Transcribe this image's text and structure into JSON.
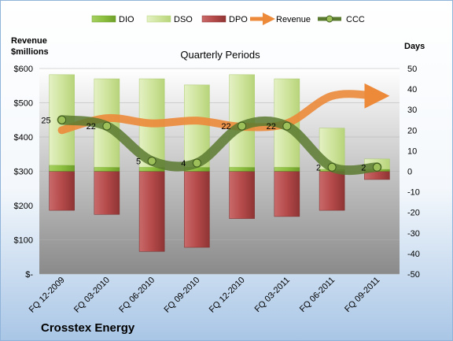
{
  "chart_data": {
    "type": "bar",
    "title": "Quarterly Periods",
    "company": "Crosstex Energy",
    "left_axis": {
      "label_line1": "Revenue",
      "label_line2": "$millions",
      "range": [
        0,
        600
      ],
      "ticks": [
        "$-",
        "$100",
        "$200",
        "$300",
        "$400",
        "$500",
        "$600"
      ]
    },
    "right_axis": {
      "label": "Days",
      "range": [
        -50,
        50
      ],
      "ticks": [
        -50,
        -40,
        -30,
        -20,
        -10,
        0,
        10,
        20,
        30,
        40,
        50
      ]
    },
    "categories": [
      "FQ 12-2009",
      "FQ 03-2010",
      "FQ 06-2010",
      "FQ 09-2010",
      "FQ 12-2010",
      "FQ 03-2011",
      "FQ 06-2011",
      "FQ 09-2011"
    ],
    "legend": [
      "DIO",
      "DSO",
      "DPO",
      "Revenue",
      "CCC"
    ],
    "series": [
      {
        "name": "DIO",
        "axis": "right",
        "stack": "positive",
        "values": [
          3,
          2,
          2,
          2,
          2,
          2,
          1,
          1
        ]
      },
      {
        "name": "DSO",
        "axis": "right",
        "stack": "positive",
        "values": [
          44,
          43,
          43,
          40,
          45,
          43,
          20,
          5
        ]
      },
      {
        "name": "DPO",
        "axis": "right",
        "stack": "negative",
        "values": [
          -19,
          -21,
          -39,
          -37,
          -23,
          -22,
          -19,
          -4
        ]
      },
      {
        "name": "Revenue",
        "axis": "left",
        "type": "line",
        "values": [
          420,
          455,
          440,
          448,
          430,
          440,
          520,
          520
        ]
      },
      {
        "name": "CCC",
        "axis": "right",
        "type": "line",
        "values": [
          25,
          22,
          5,
          4,
          22,
          22,
          2,
          2
        ],
        "labels": [
          "25",
          "22",
          "5",
          "4",
          "22",
          "22",
          "2",
          "2"
        ]
      }
    ],
    "colors": {
      "DIO": "#8cbf3f",
      "DSO": "#d3e7a6",
      "DPO": "#b54a4a",
      "Revenue": "#ec8a3a",
      "CCC": "#5a7a30"
    }
  }
}
